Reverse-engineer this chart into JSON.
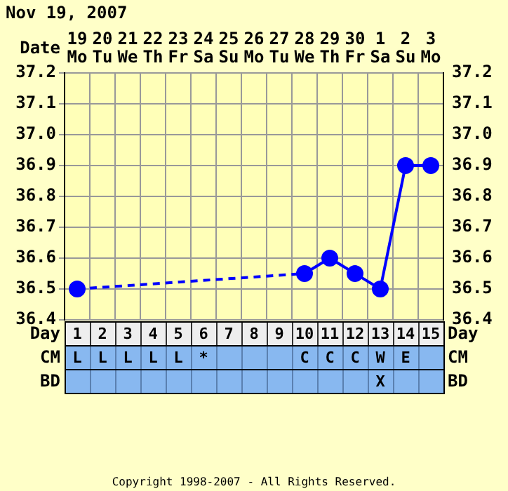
{
  "chart_data": {
    "type": "line",
    "title": "Nov 19, 2007",
    "xlabel": "Date",
    "categories": [
      "19\nMo",
      "20\nTu",
      "21\nWe",
      "22\nTh",
      "23\nFr",
      "24\nSa",
      "25\nSu",
      "26\nMo",
      "27\nTu",
      "28\nWe",
      "29\nTh",
      "30\nFr",
      "1\nSa",
      "2\nSu",
      "3\nMo"
    ],
    "series": [
      {
        "color": "#0000ff",
        "values": [
          36.5,
          null,
          null,
          null,
          null,
          null,
          null,
          null,
          null,
          36.55,
          36.6,
          36.55,
          36.5,
          36.9,
          36.9
        ]
      }
    ],
    "ylim": [
      36.4,
      37.2
    ],
    "yticks": [
      36.4,
      36.5,
      36.6,
      36.7,
      36.8,
      36.9,
      {
        "value": 37,
        "label": "37.0"
      },
      37.1,
      37.2
    ],
    "y2lim": [
      36.4,
      37.2
    ],
    "y2ticks": [
      36.4,
      36.5,
      36.6,
      36.7,
      36.8,
      36.9,
      {
        "value": 37,
        "label": "37.0"
      },
      37.1,
      37.2
    ],
    "grid": true,
    "legend": false,
    "marker": "circle",
    "line_style": "solid",
    "annotations": [
      "Day",
      "1",
      "2",
      "3",
      "4",
      "5",
      "6",
      "7",
      "8",
      "9",
      "10",
      "11",
      "12",
      "13",
      "14",
      "15",
      "CM",
      "L",
      "L",
      "L",
      "L",
      "L",
      "*",
      null,
      null,
      null,
      "C",
      "C",
      "C",
      "W",
      "E",
      null,
      "BD",
      null,
      null,
      null,
      null,
      null,
      null,
      null,
      null,
      null,
      null,
      null,
      null,
      "X",
      null,
      null,
      "Copyright 1998-2007 - All Rights Reserved."
    ]
  }
}
